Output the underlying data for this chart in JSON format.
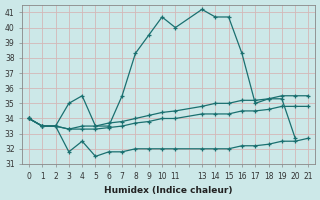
{
  "title": "",
  "xlabel": "Humidex (Indice chaleur)",
  "ylabel": "",
  "bg_color": "#cce8e8",
  "line_color": "#1a7070",
  "grid_color": "#c0c0c0",
  "grid_bg": "#cce8e8",
  "ylim": [
    31,
    41.5
  ],
  "xlim": [
    -0.5,
    21.5
  ],
  "yticks": [
    31,
    32,
    33,
    34,
    35,
    36,
    37,
    38,
    39,
    40,
    41
  ],
  "xtick_labels": [
    "0",
    "1",
    "2",
    "3",
    "4",
    "5",
    "6",
    "7",
    "8",
    "9",
    "10",
    "11",
    "",
    "13",
    "14",
    "15",
    "16",
    "17",
    "18",
    "19",
    "20",
    "21"
  ],
  "series": [
    {
      "x": [
        0,
        1,
        2,
        3,
        4,
        5,
        6,
        7,
        8,
        9,
        10,
        11,
        13,
        14,
        15,
        16,
        17,
        18,
        19,
        20
      ],
      "y": [
        34.0,
        33.5,
        33.5,
        35.0,
        35.5,
        33.5,
        33.5,
        35.5,
        38.3,
        39.5,
        40.7,
        40.0,
        41.2,
        40.7,
        40.7,
        38.3,
        35.0,
        35.3,
        35.3,
        32.7
      ]
    },
    {
      "x": [
        0,
        1,
        2,
        3,
        4,
        5,
        6,
        7,
        8,
        9,
        10,
        11,
        13,
        14,
        15,
        16,
        17,
        18,
        19,
        20,
        21
      ],
      "y": [
        34.0,
        33.5,
        33.5,
        33.3,
        33.5,
        33.5,
        33.7,
        33.8,
        34.0,
        34.2,
        34.4,
        34.5,
        34.8,
        35.0,
        35.0,
        35.2,
        35.2,
        35.3,
        35.5,
        35.5,
        35.5
      ]
    },
    {
      "x": [
        0,
        1,
        2,
        3,
        4,
        5,
        6,
        7,
        8,
        9,
        10,
        11,
        13,
        14,
        15,
        16,
        17,
        18,
        19,
        20,
        21
      ],
      "y": [
        34.0,
        33.5,
        33.5,
        33.3,
        33.3,
        33.3,
        33.4,
        33.5,
        33.7,
        33.8,
        34.0,
        34.0,
        34.3,
        34.3,
        34.3,
        34.5,
        34.5,
        34.6,
        34.8,
        34.8,
        34.8
      ]
    },
    {
      "x": [
        0,
        1,
        2,
        3,
        4,
        5,
        6,
        7,
        8,
        9,
        10,
        11,
        13,
        14,
        15,
        16,
        17,
        18,
        19,
        20,
        21
      ],
      "y": [
        34.0,
        33.5,
        33.5,
        31.8,
        32.5,
        31.5,
        31.8,
        31.8,
        32.0,
        32.0,
        32.0,
        32.0,
        32.0,
        32.0,
        32.0,
        32.2,
        32.2,
        32.3,
        32.5,
        32.5,
        32.7
      ]
    }
  ]
}
